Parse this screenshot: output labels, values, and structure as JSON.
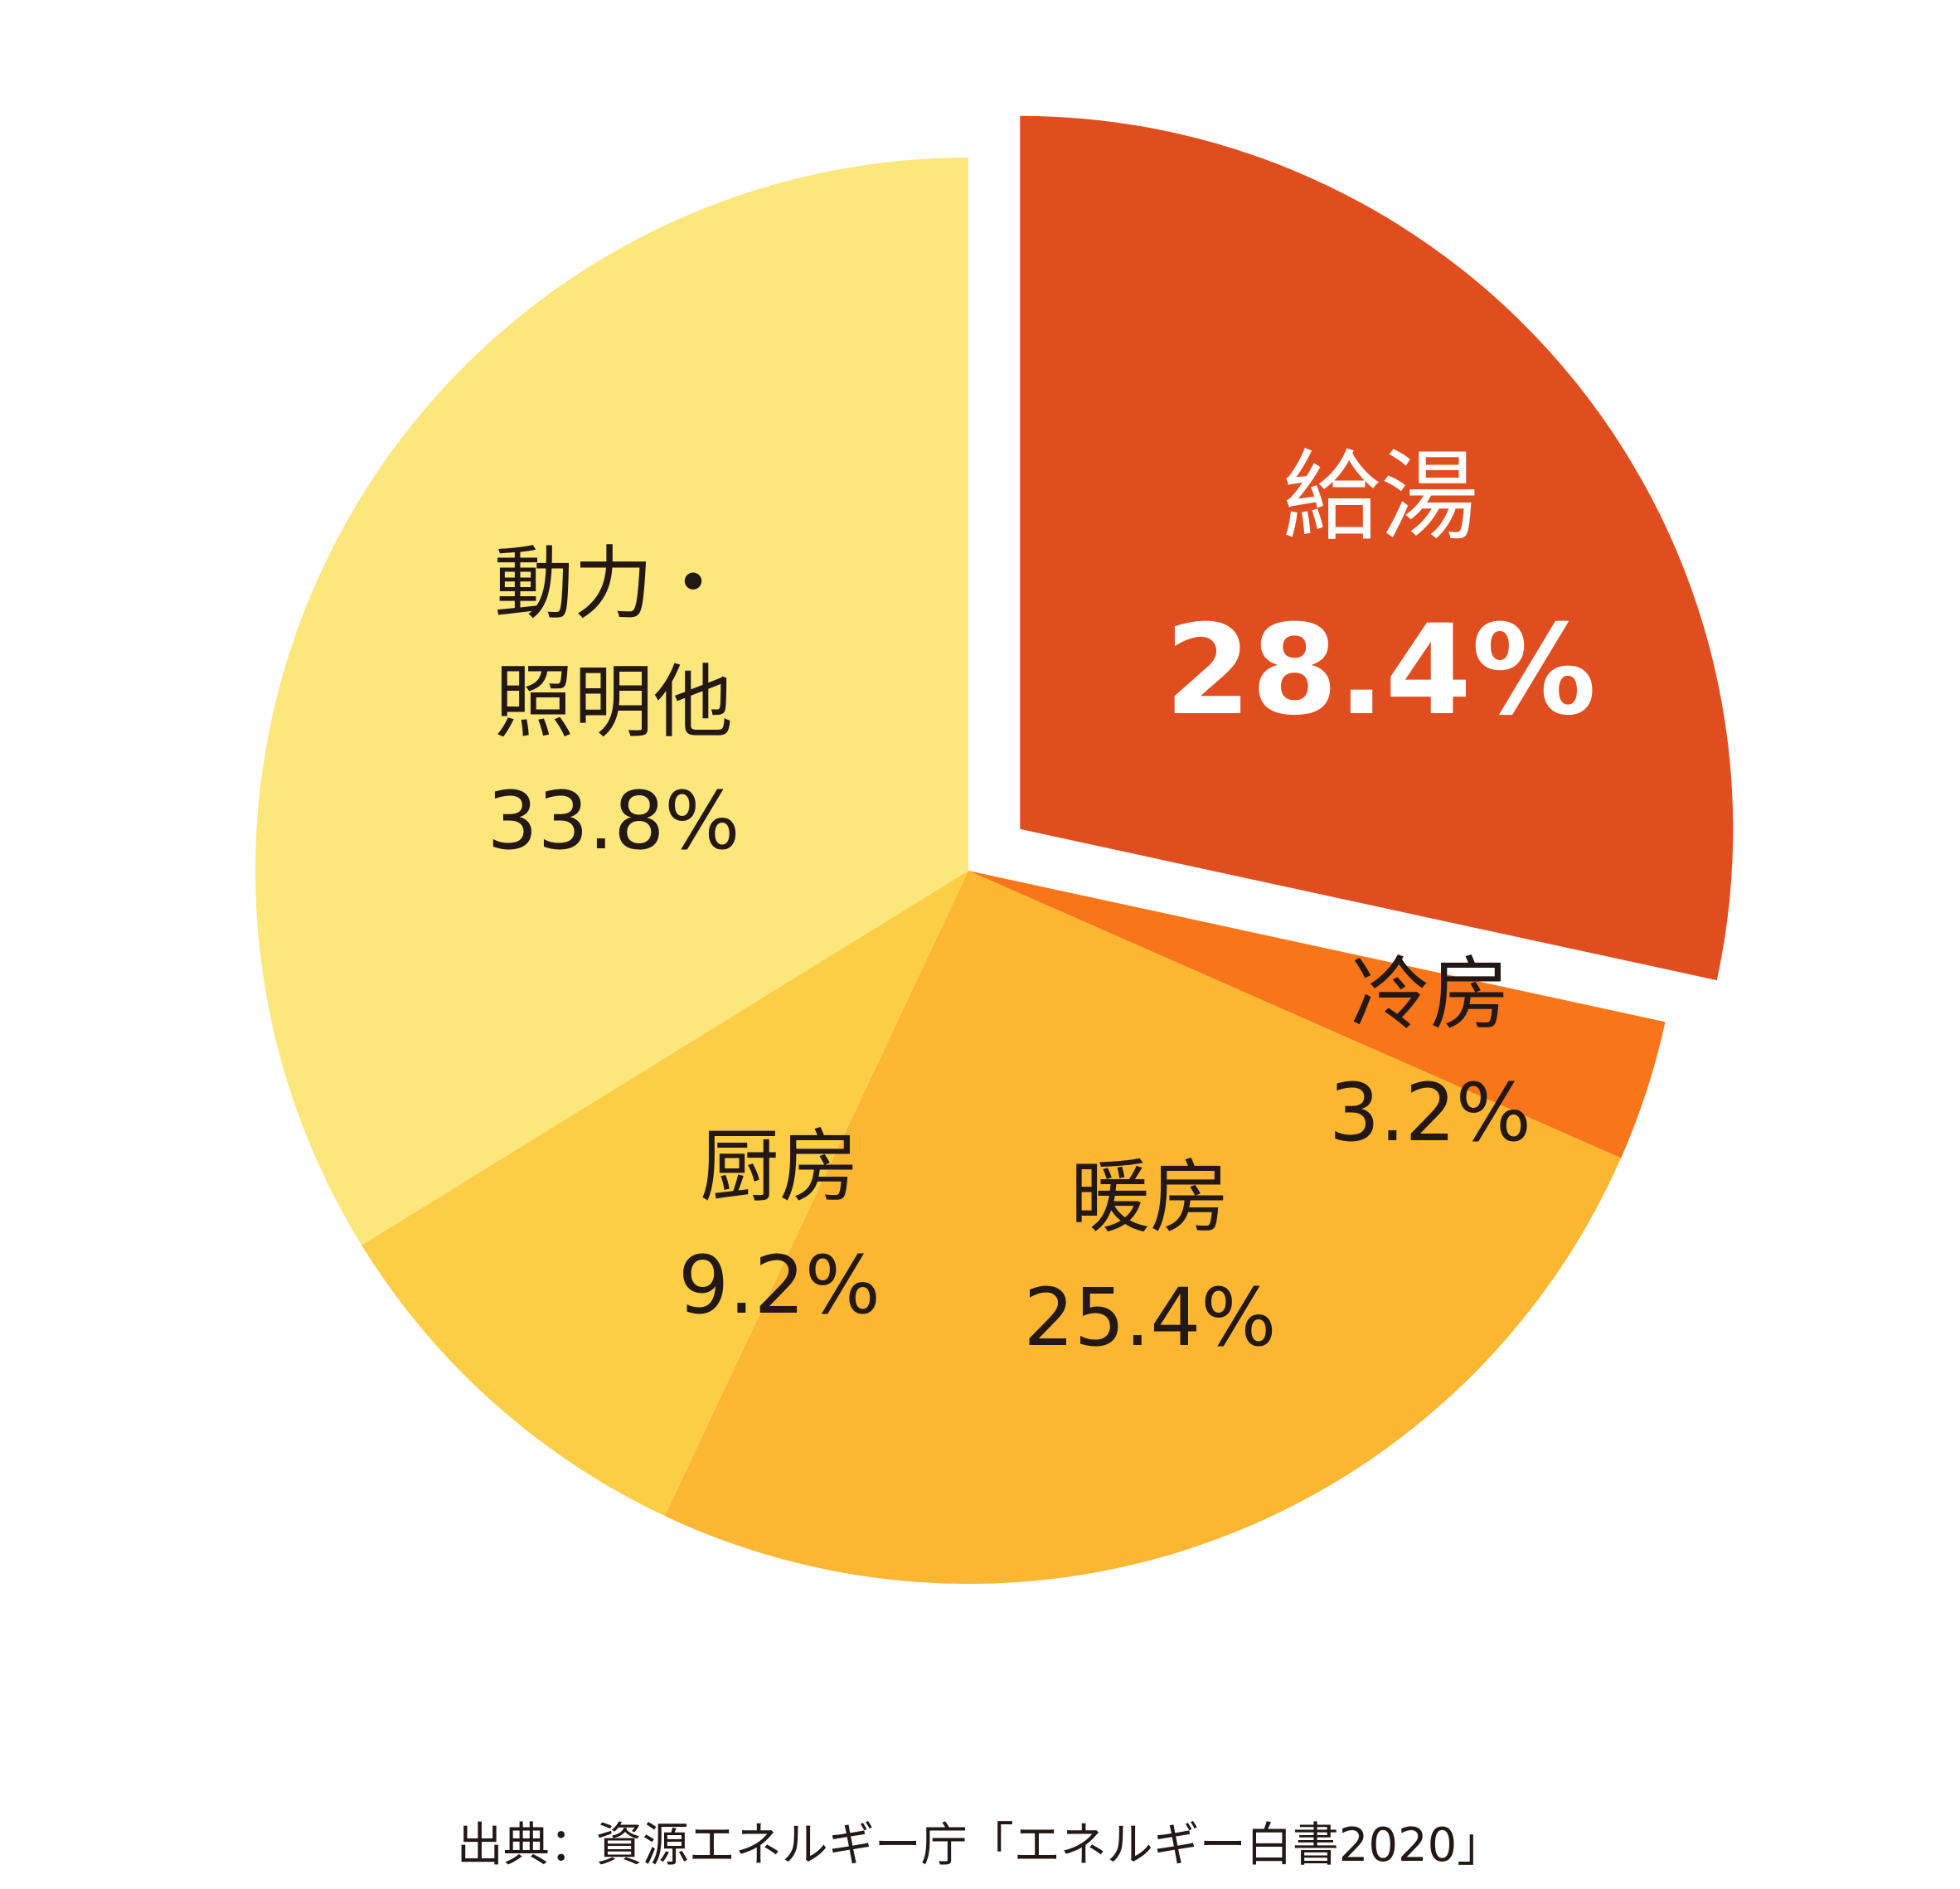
{
  "chart_data": {
    "type": "pie",
    "title": "",
    "start_angle_deg": 0,
    "direction": "clockwise",
    "exploded_slice": "給湯",
    "slices": [
      {
        "key": "hot_water",
        "name": "給湯",
        "value": 28.4,
        "value_label": "28.4%",
        "color": "#E04E20"
      },
      {
        "key": "cooling",
        "name": "冷房",
        "value": 3.2,
        "value_label": "3.2%",
        "color": "#F97519"
      },
      {
        "key": "heating",
        "name": "暖房",
        "value": 25.4,
        "value_label": "25.4%",
        "color": "#FBB632"
      },
      {
        "key": "kitchen",
        "name": "厨房",
        "value": 9.2,
        "value_label": "9.2%",
        "color": "#FCCE45"
      },
      {
        "key": "power_lighting",
        "name_lines": [
          "動力・",
          "照明他"
        ],
        "value": 33.8,
        "value_label": "33.8%",
        "color": "#FCE77D"
      }
    ]
  },
  "labels": {
    "hot_water_name": "給湯",
    "hot_water_value": "28.4%",
    "cooling_name": "冷房",
    "cooling_value": "3.2%",
    "heating_name": "暖房",
    "heating_value": "25.4%",
    "kitchen_name": "厨房",
    "kitchen_value": "9.2%",
    "power_line1": "動力・",
    "power_line2": "照明他",
    "power_value": "33.8%"
  },
  "source": "出典：資源エネルギー庁「エネルギー白書2020」"
}
